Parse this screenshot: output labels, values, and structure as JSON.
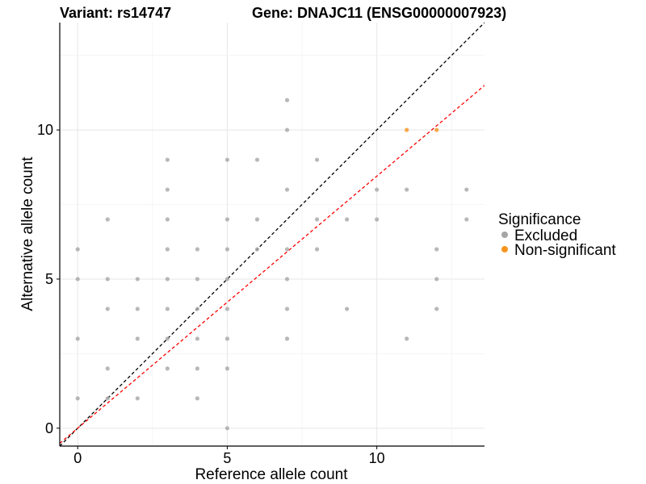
{
  "chart_data": {
    "type": "scatter",
    "title_left": "Variant: rs14747",
    "title_right": "Gene: DNAJC11 (ENSG00000007923)",
    "xlabel": "Reference allele count",
    "ylabel": "Alternative allele count",
    "xlim": [
      -0.6,
      13.6
    ],
    "ylim": [
      -0.6,
      13.6
    ],
    "x_ticks": [
      0,
      5,
      10
    ],
    "y_ticks": [
      0,
      5,
      10
    ],
    "grid": true,
    "legend": {
      "title": "Significance",
      "placement": "right",
      "entries": [
        {
          "label": "Excluded",
          "color": "#a6a6a6"
        },
        {
          "label": "Non-significant",
          "color": "#f7941d"
        }
      ]
    },
    "reference_lines": [
      {
        "slope": 1.0,
        "intercept": 0,
        "color": "#000000",
        "style": "dashed"
      },
      {
        "slope": 0.845,
        "intercept": 0,
        "color": "#ff0000",
        "style": "dashed"
      }
    ],
    "series": [
      {
        "name": "Excluded",
        "color": "#a6a6a6",
        "points": [
          [
            0,
            1
          ],
          [
            0,
            3
          ],
          [
            0,
            5
          ],
          [
            0,
            6
          ],
          [
            1,
            1
          ],
          [
            1,
            2
          ],
          [
            1,
            4
          ],
          [
            1,
            5
          ],
          [
            1,
            7
          ],
          [
            2,
            1
          ],
          [
            2,
            3
          ],
          [
            2,
            4
          ],
          [
            2,
            5
          ],
          [
            3,
            2
          ],
          [
            3,
            3
          ],
          [
            3,
            4
          ],
          [
            3,
            5
          ],
          [
            3,
            6
          ],
          [
            3,
            7
          ],
          [
            3,
            8
          ],
          [
            3,
            9
          ],
          [
            4,
            1
          ],
          [
            4,
            2
          ],
          [
            4,
            3
          ],
          [
            4,
            4
          ],
          [
            4,
            5
          ],
          [
            4,
            6
          ],
          [
            5,
            0
          ],
          [
            5,
            2
          ],
          [
            5,
            3
          ],
          [
            5,
            4
          ],
          [
            5,
            5
          ],
          [
            5,
            6
          ],
          [
            5,
            7
          ],
          [
            5,
            9
          ],
          [
            6,
            6
          ],
          [
            6,
            7
          ],
          [
            6,
            9
          ],
          [
            7,
            3
          ],
          [
            7,
            4
          ],
          [
            7,
            5
          ],
          [
            7,
            6
          ],
          [
            7,
            8
          ],
          [
            7,
            10
          ],
          [
            7,
            11
          ],
          [
            8,
            6
          ],
          [
            8,
            7
          ],
          [
            8,
            9
          ],
          [
            9,
            4
          ],
          [
            9,
            7
          ],
          [
            10,
            7
          ],
          [
            10,
            8
          ],
          [
            11,
            3
          ],
          [
            11,
            8
          ],
          [
            12,
            4
          ],
          [
            12,
            5
          ],
          [
            12,
            6
          ],
          [
            13,
            7
          ],
          [
            13,
            8
          ]
        ]
      },
      {
        "name": "Non-significant",
        "color": "#f7941d",
        "points": [
          [
            11,
            10
          ],
          [
            12,
            10
          ]
        ]
      }
    ]
  }
}
